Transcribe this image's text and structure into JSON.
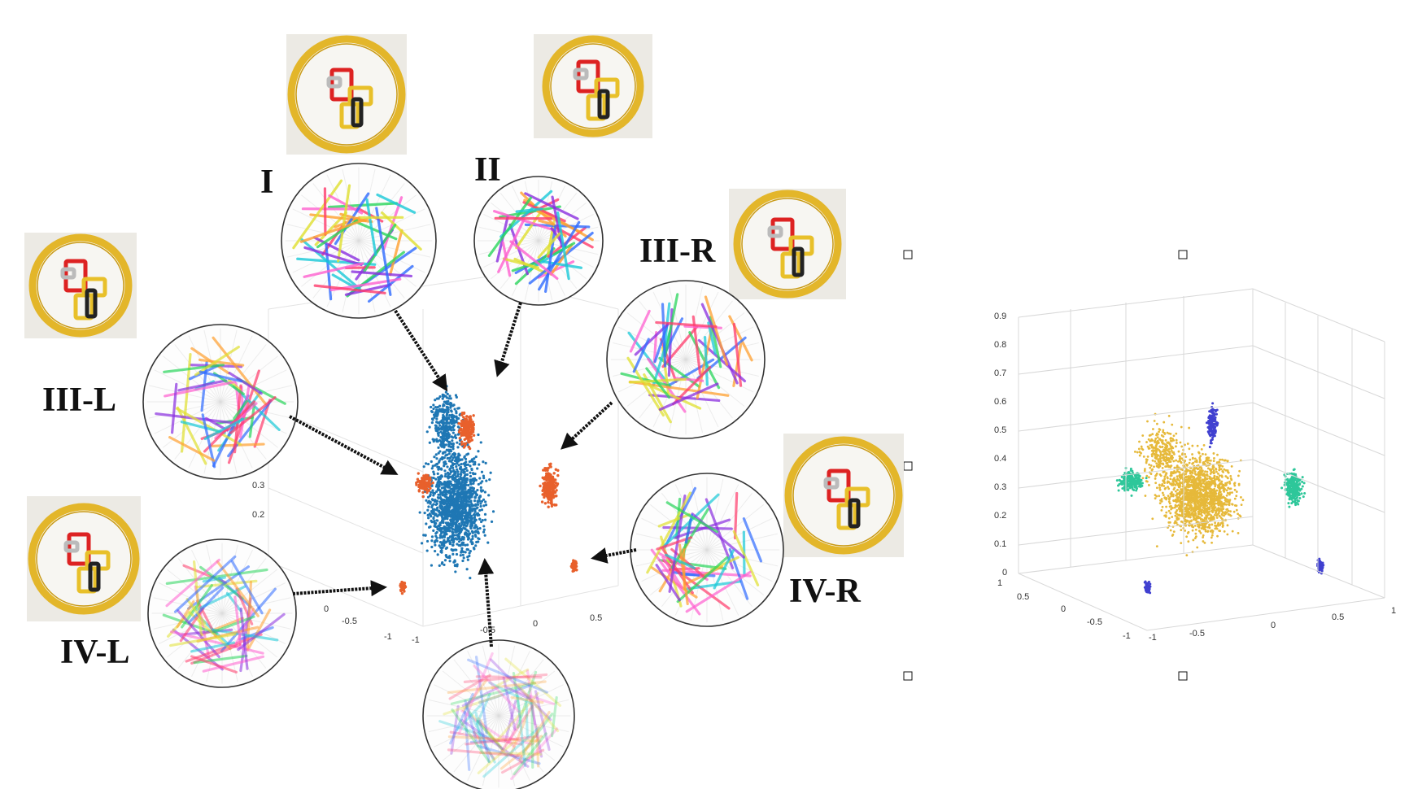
{
  "cluster_labels": {
    "I": "I",
    "II": "II",
    "III_R": "III-R",
    "III_L": "III-L",
    "IV_R": "IV-R",
    "IV_L": "IV-L"
  },
  "left_plot": {
    "y_ticks": [
      "0.3",
      "0.2"
    ],
    "x_ticks_a": [
      "0",
      "-0.5",
      "-1"
    ],
    "x_ticks_b": [
      "-1",
      "-0.5",
      "0",
      "0.5"
    ],
    "colors": {
      "main": "#1f77b4",
      "cluster": "#e8602c"
    }
  },
  "right_plot": {
    "z_ticks": [
      "0.9",
      "0.8",
      "0.7",
      "0.6",
      "0.5",
      "0.4",
      "0.3",
      "0.2",
      "0.1",
      "0"
    ],
    "y_ticks": [
      "1",
      "0.5",
      "0",
      "-0.5",
      "-1"
    ],
    "x_ticks": [
      "-1",
      "-0.5",
      "0",
      "0.5",
      "1"
    ],
    "colors": {
      "main": "#e6b93a",
      "green": "#2ec79a",
      "blue": "#4040d0"
    }
  },
  "colors": {
    "ring": "#e3b62a",
    "arrow": "#111111"
  }
}
